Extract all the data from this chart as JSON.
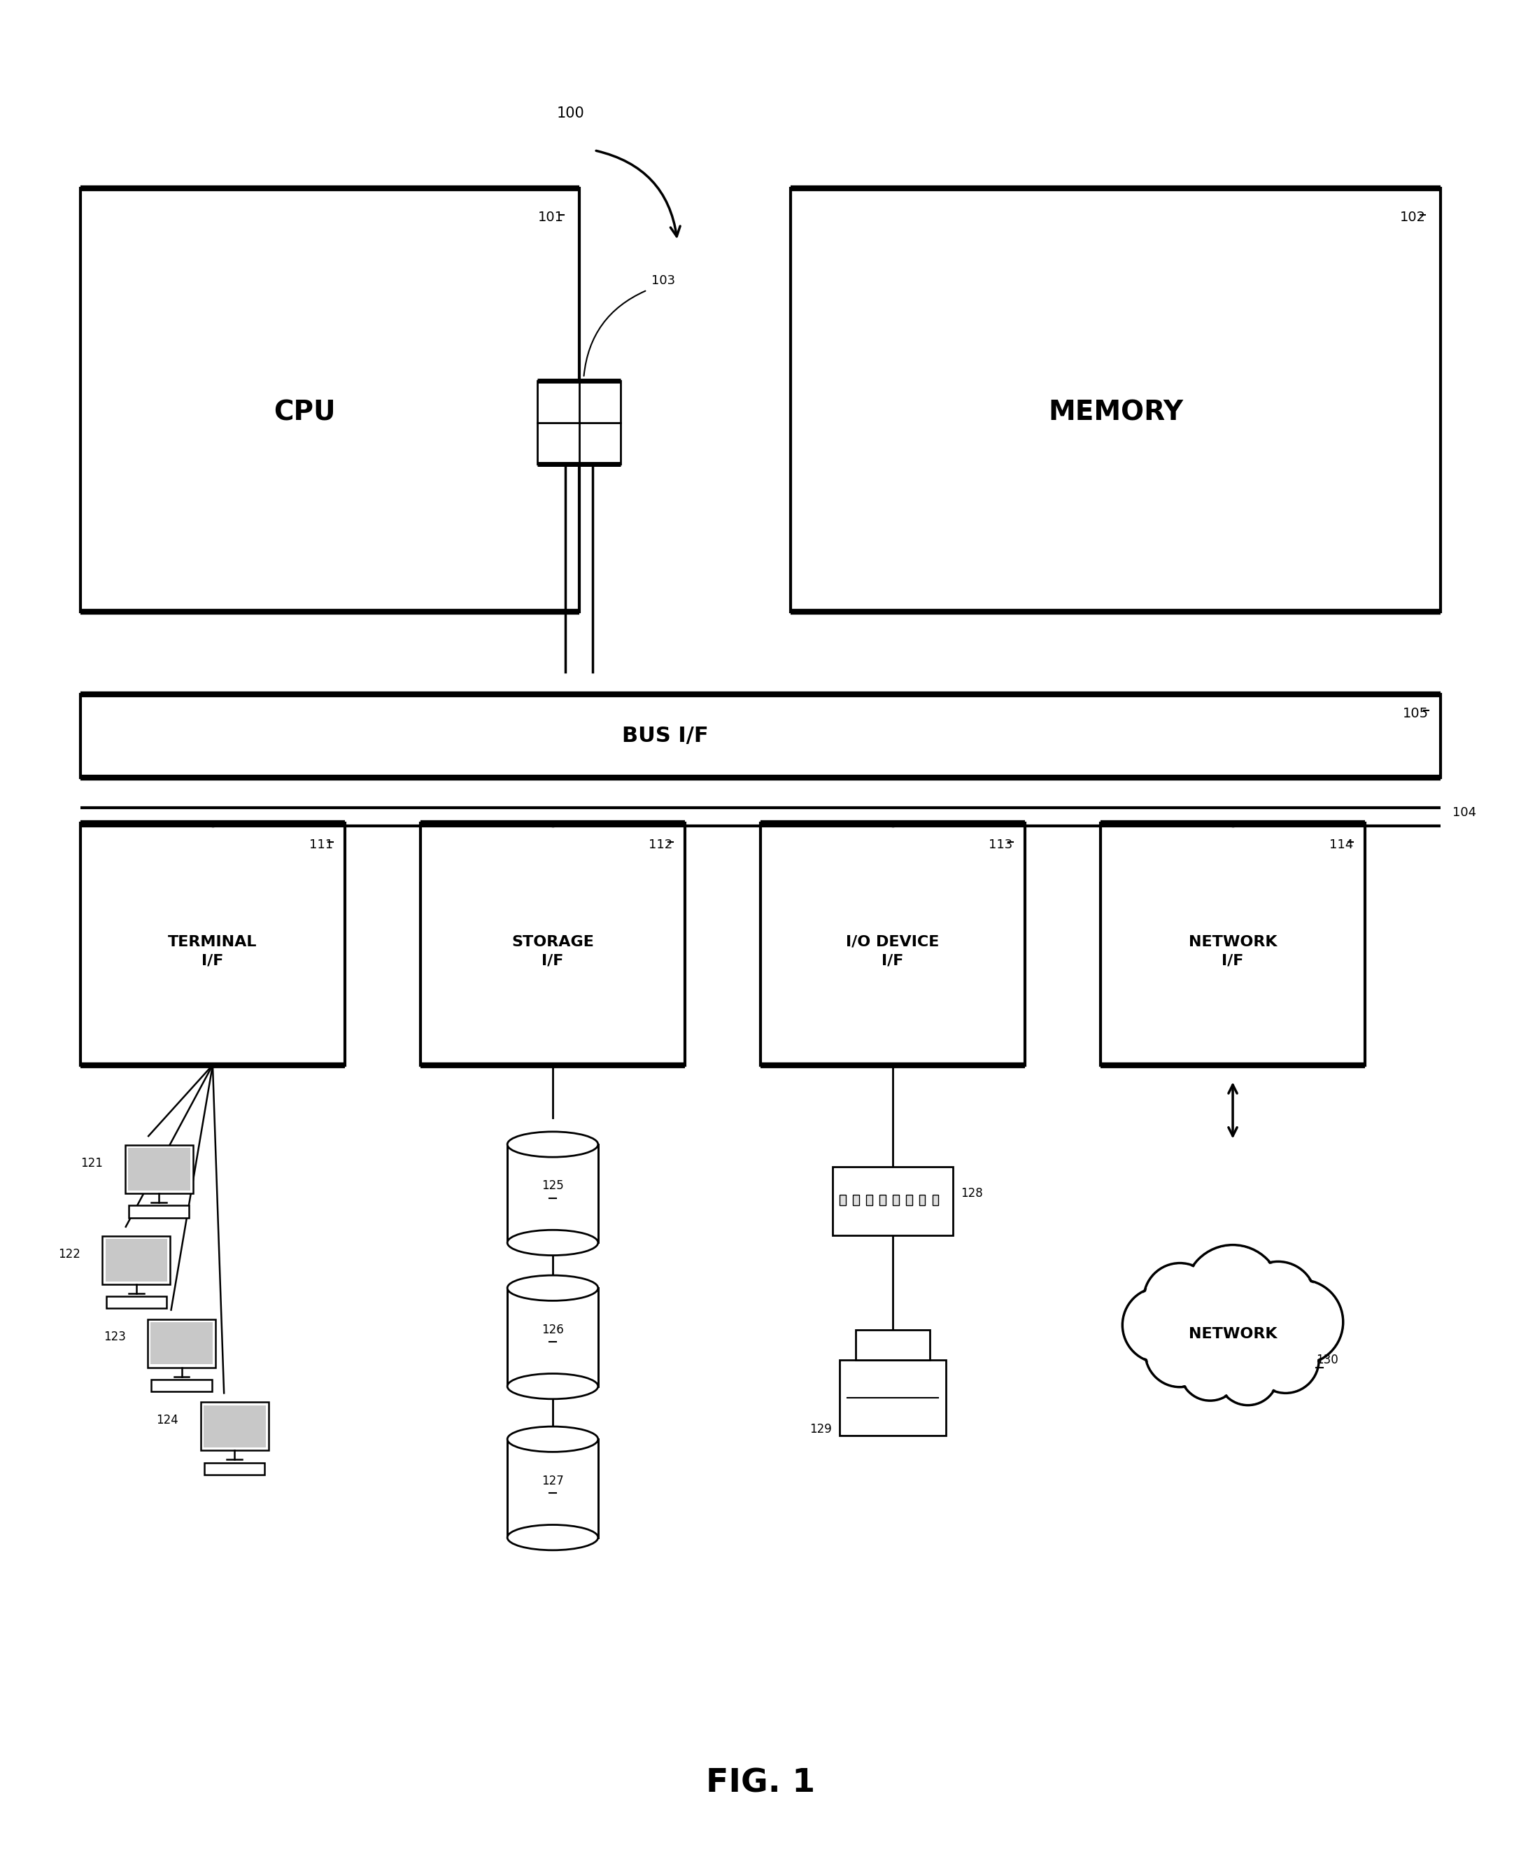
{
  "fig_label": "FIG. 1",
  "bg_color": "#ffffff",
  "label_100": "100",
  "label_101": "101",
  "label_102": "102",
  "label_103": "103",
  "label_104": "104",
  "label_105": "105",
  "label_111": "111",
  "label_112": "112",
  "label_113": "113",
  "label_114": "114",
  "label_121": "121",
  "label_122": "122",
  "label_123": "123",
  "label_124": "124",
  "label_125": "125",
  "label_126": "126",
  "label_127": "127",
  "label_128": "128",
  "label_129": "129",
  "label_130": "130",
  "text_cpu": "CPU",
  "text_memory": "MEMORY",
  "text_bus": "BUS I/F",
  "text_terminal": "TERMINAL\nI/F",
  "text_storage": "STORAGE\nI/F",
  "text_iodevice": "I/O DEVICE\nI/F",
  "text_network_if": "NETWORK\nI/F",
  "text_network": "NETWORK",
  "line_color": "#000000"
}
